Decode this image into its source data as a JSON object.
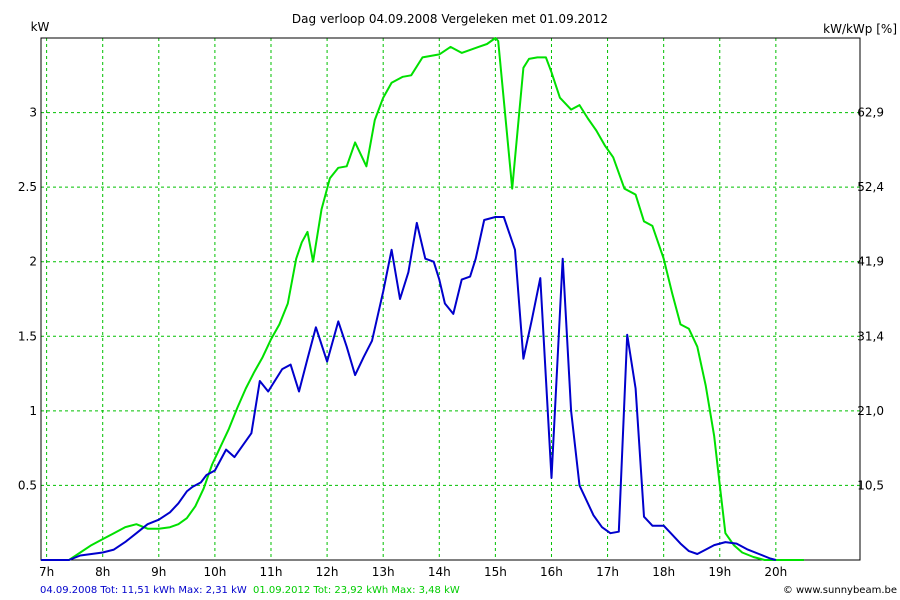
{
  "chart_data": {
    "type": "line",
    "title": "Dag  verloop 04.09.2008   Vergeleken met 01.09.2012",
    "ylabel_left": "kW",
    "ylabel_right": "kW/kWp [%]",
    "xlim": [
      6.9,
      21.5
    ],
    "ylim": [
      0,
      3.5
    ],
    "grid": true,
    "x_ticks": [
      {
        "value": 7,
        "label": "7h"
      },
      {
        "value": 8,
        "label": "8h"
      },
      {
        "value": 9,
        "label": "9h"
      },
      {
        "value": 10,
        "label": "10h"
      },
      {
        "value": 11,
        "label": "11h"
      },
      {
        "value": 12,
        "label": "12h"
      },
      {
        "value": 13,
        "label": "13h"
      },
      {
        "value": 14,
        "label": "14h"
      },
      {
        "value": 15,
        "label": "15h"
      },
      {
        "value": 16,
        "label": "16h"
      },
      {
        "value": 17,
        "label": "17h"
      },
      {
        "value": 18,
        "label": "18h"
      },
      {
        "value": 19,
        "label": "19h"
      },
      {
        "value": 20,
        "label": "20h"
      }
    ],
    "y_ticks_left": [
      {
        "value": 0.5,
        "label": "0.5"
      },
      {
        "value": 1,
        "label": "1"
      },
      {
        "value": 1.5,
        "label": "1.5"
      },
      {
        "value": 2,
        "label": "2"
      },
      {
        "value": 2.5,
        "label": "2.5"
      },
      {
        "value": 3,
        "label": "3"
      }
    ],
    "y_ticks_right": [
      {
        "value": 0.5,
        "label": "10,5"
      },
      {
        "value": 1,
        "label": "21,0"
      },
      {
        "value": 1.5,
        "label": "31,4"
      },
      {
        "value": 2,
        "label": "41,9"
      },
      {
        "value": 2.5,
        "label": "52,4"
      },
      {
        "value": 3,
        "label": "62,9"
      }
    ],
    "series": [
      {
        "name": "04.09.2008",
        "color": "#0000cc",
        "x": [
          6.9,
          7.4,
          7.6,
          7.8,
          8.0,
          8.2,
          8.4,
          8.6,
          8.8,
          9.0,
          9.2,
          9.35,
          9.5,
          9.6,
          9.75,
          9.85,
          10.0,
          10.2,
          10.35,
          10.5,
          10.65,
          10.8,
          10.95,
          11.05,
          11.2,
          11.35,
          11.5,
          11.65,
          11.8,
          12.0,
          12.2,
          12.35,
          12.5,
          12.65,
          12.8,
          13.0,
          13.15,
          13.3,
          13.45,
          13.6,
          13.75,
          13.9,
          14.0,
          14.1,
          14.25,
          14.4,
          14.55,
          14.65,
          14.8,
          15.0,
          15.15,
          15.35,
          15.5,
          15.65,
          15.8,
          16.0,
          16.2,
          16.35,
          16.5,
          16.75,
          16.9,
          17.05,
          17.2,
          17.35,
          17.5,
          17.65,
          17.8,
          18.0,
          18.15,
          18.3,
          18.45,
          18.6,
          18.75,
          18.9,
          19.1,
          19.3,
          19.5,
          19.7,
          19.9,
          20.0
        ],
        "values": [
          0,
          0,
          0.03,
          0.04,
          0.05,
          0.07,
          0.12,
          0.18,
          0.24,
          0.27,
          0.32,
          0.38,
          0.46,
          0.49,
          0.52,
          0.57,
          0.6,
          0.74,
          0.69,
          0.77,
          0.85,
          1.2,
          1.13,
          1.19,
          1.28,
          1.31,
          1.13,
          1.35,
          1.56,
          1.33,
          1.6,
          1.43,
          1.24,
          1.36,
          1.47,
          1.8,
          2.08,
          1.75,
          1.93,
          2.26,
          2.02,
          2.0,
          1.88,
          1.72,
          1.65,
          1.88,
          1.9,
          2.02,
          2.28,
          2.3,
          2.3,
          2.08,
          1.35,
          1.61,
          1.89,
          0.55,
          2.02,
          1.0,
          0.5,
          0.3,
          0.22,
          0.18,
          0.19,
          1.51,
          1.15,
          0.29,
          0.23,
          0.23,
          0.17,
          0.11,
          0.06,
          0.04,
          0.07,
          0.1,
          0.12,
          0.11,
          0.07,
          0.04,
          0.01,
          0
        ]
      },
      {
        "name": "01.09.2012",
        "color": "#00e000",
        "x": [
          6.9,
          7.4,
          7.6,
          7.8,
          8.0,
          8.2,
          8.4,
          8.6,
          8.8,
          9.0,
          9.2,
          9.35,
          9.5,
          9.65,
          9.8,
          9.95,
          10.1,
          10.25,
          10.4,
          10.55,
          10.7,
          10.85,
          11.0,
          11.15,
          11.3,
          11.45,
          11.55,
          11.65,
          11.75,
          11.9,
          12.05,
          12.2,
          12.35,
          12.5,
          12.7,
          12.85,
          13.0,
          13.15,
          13.35,
          13.5,
          13.7,
          13.85,
          14.0,
          14.2,
          14.4,
          14.55,
          14.7,
          14.85,
          15.0,
          15.05,
          15.3,
          15.5,
          15.6,
          15.75,
          15.9,
          16.0,
          16.15,
          16.35,
          16.5,
          16.65,
          16.8,
          16.95,
          17.1,
          17.3,
          17.5,
          17.65,
          17.8,
          18.0,
          18.15,
          18.3,
          18.45,
          18.6,
          18.75,
          18.9,
          19.0,
          19.1,
          19.25,
          19.4,
          19.6,
          19.8,
          20.0,
          20.2,
          20.5
        ],
        "values": [
          0,
          0,
          0.05,
          0.1,
          0.14,
          0.18,
          0.22,
          0.24,
          0.21,
          0.21,
          0.22,
          0.24,
          0.28,
          0.36,
          0.48,
          0.64,
          0.76,
          0.88,
          1.02,
          1.15,
          1.26,
          1.36,
          1.48,
          1.58,
          1.72,
          2.02,
          2.13,
          2.2,
          2.0,
          2.35,
          2.56,
          2.63,
          2.64,
          2.8,
          2.64,
          2.95,
          3.1,
          3.2,
          3.24,
          3.25,
          3.37,
          3.38,
          3.39,
          3.44,
          3.4,
          3.42,
          3.44,
          3.46,
          3.5,
          3.48,
          2.49,
          3.3,
          3.36,
          3.37,
          3.37,
          3.27,
          3.1,
          3.02,
          3.05,
          2.96,
          2.88,
          2.78,
          2.7,
          2.49,
          2.45,
          2.27,
          2.24,
          2.02,
          1.79,
          1.58,
          1.55,
          1.43,
          1.17,
          0.83,
          0.5,
          0.18,
          0.1,
          0.05,
          0.02,
          0,
          0,
          0,
          0
        ]
      }
    ]
  },
  "footer": {
    "left_label": "04.09.2008 Tot: 11,51 kWh Max: 2,31 kW",
    "middle_label": "01.09.2012 Tot: 23,92 kWh Max: 3,48 kW",
    "copyright": "© www.sunnybeam.be"
  }
}
